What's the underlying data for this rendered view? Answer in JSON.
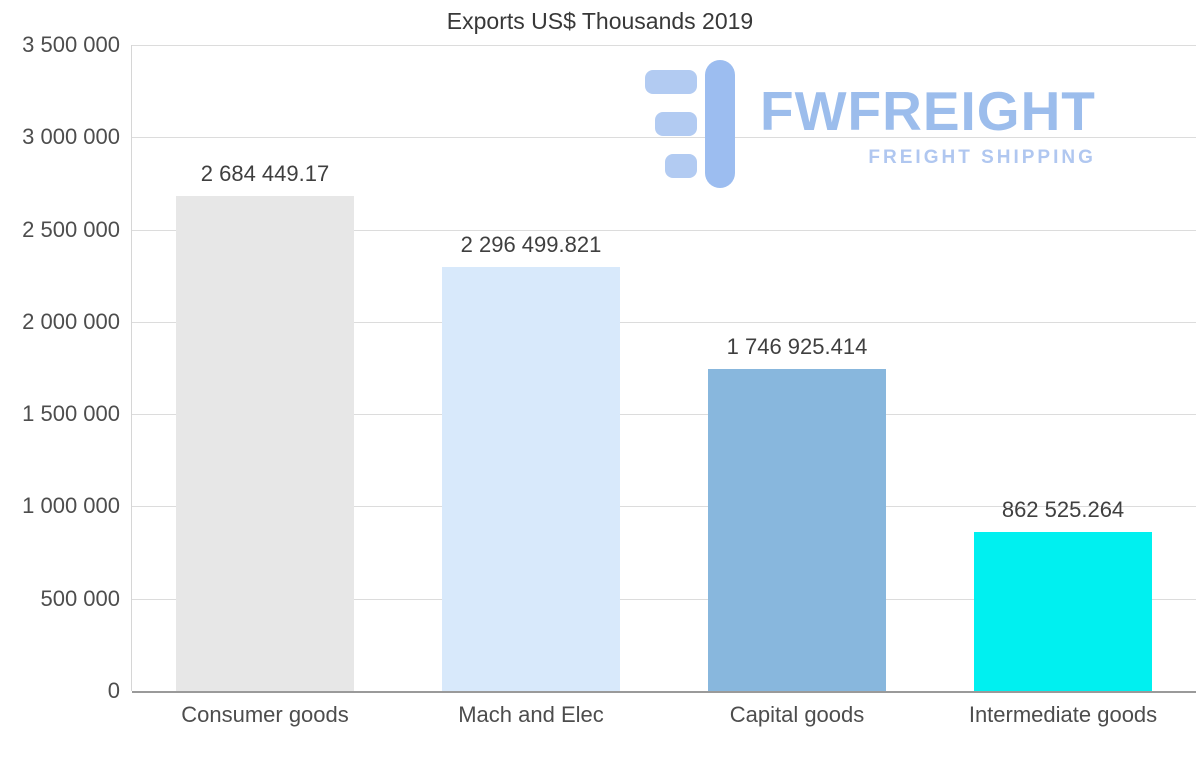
{
  "chart_data": {
    "type": "bar",
    "title": "Exports US$ Thousands 2019",
    "categories": [
      "Consumer goods",
      "Mach and Elec",
      "Capital goods",
      "Intermediate goods"
    ],
    "values": [
      2684449.17,
      2296499.821,
      1746925.414,
      862525.264
    ],
    "value_labels": [
      "2 684 449.17",
      "2 296 499.821",
      "1 746 925.414",
      "862 525.264"
    ],
    "bar_colors": [
      "#e7e7e7",
      "#d8e9fb",
      "#88b7dd",
      "#00f0f0"
    ],
    "y_ticks": [
      {
        "value": 3500000,
        "label": "3 500 000"
      },
      {
        "value": 3000000,
        "label": "3 000 000"
      },
      {
        "value": 2500000,
        "label": "2 500 000"
      },
      {
        "value": 2000000,
        "label": "2 000 000"
      },
      {
        "value": 1500000,
        "label": "1 500 000"
      },
      {
        "value": 1000000,
        "label": "1 000 000"
      },
      {
        "value": 500000,
        "label": "500 000"
      },
      {
        "value": 0,
        "label": "0"
      }
    ],
    "ylim": [
      0,
      3500000
    ],
    "xlabel": "",
    "ylabel": "",
    "grid": true,
    "legend": false
  },
  "watermark": {
    "icon": "fwfreight-logo-icon",
    "name": "FWFREIGHT",
    "subtitle": "FREIGHT SHIPPING",
    "icon_bar_color": "#b2cbf2",
    "icon_stem_color": "#9cbdf0"
  }
}
